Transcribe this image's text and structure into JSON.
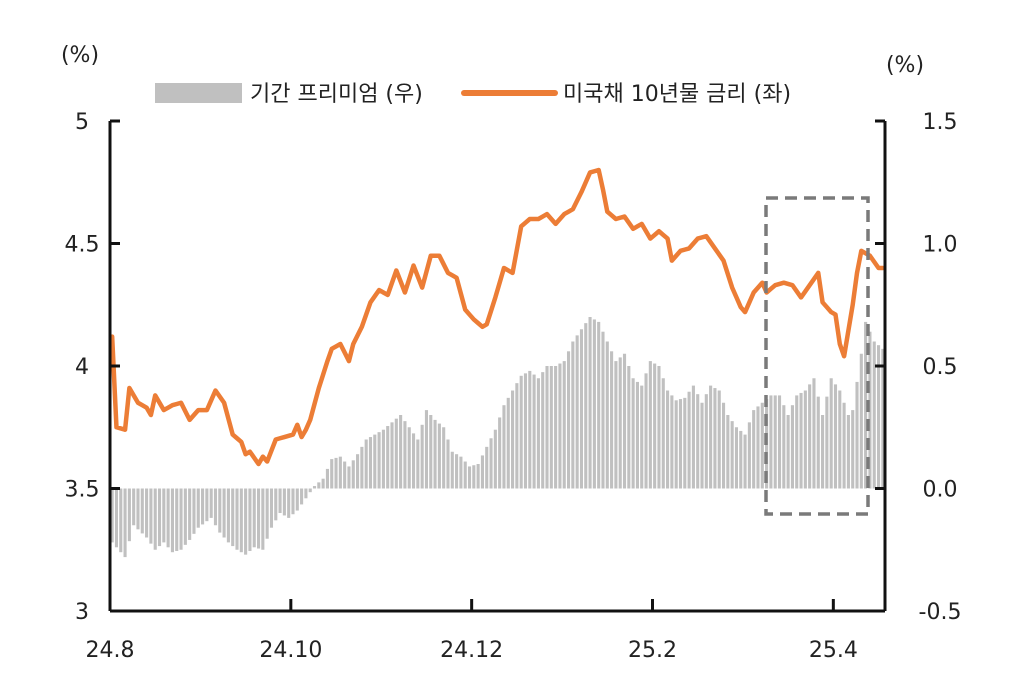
{
  "chart_data": {
    "type": "bar+line",
    "left_axis": {
      "unit": "(%)",
      "ylim": [
        3,
        5
      ],
      "ticks": [
        3,
        3.5,
        4,
        4.5,
        5
      ],
      "tick_labels": [
        "3",
        "3.5",
        "4",
        "4.5",
        "5"
      ]
    },
    "right_axis": {
      "unit": "(%)",
      "ylim": [
        -0.5,
        1.5
      ],
      "ticks": [
        -0.5,
        0.0,
        0.5,
        1.0,
        1.5
      ],
      "tick_labels": [
        "-0.5",
        "0.0",
        "0.5",
        "1.0",
        "1.5"
      ]
    },
    "x_axis": {
      "tick_labels": [
        "24.8",
        "24.10",
        "24.12",
        "25.2",
        "25.4"
      ],
      "tick_index": [
        0,
        42,
        84,
        126,
        168
      ],
      "n_points": 180
    },
    "legend": [
      {
        "label": "기간 프리미엄 (우)",
        "kind": "bar",
        "color": "#c0c0c0"
      },
      {
        "label": "미국채 10년물 금리 (좌)",
        "kind": "line",
        "color": "#ec7d36"
      }
    ],
    "series": [
      {
        "name": "기간 프리미엄 (우)",
        "axis": "right",
        "type": "bar",
        "anchors": [
          [
            0,
            -0.22
          ],
          [
            3,
            -0.28
          ],
          [
            5,
            -0.15
          ],
          [
            8,
            -0.2
          ],
          [
            10,
            -0.25
          ],
          [
            12,
            -0.22
          ],
          [
            14,
            -0.26
          ],
          [
            16,
            -0.25
          ],
          [
            18,
            -0.21
          ],
          [
            20,
            -0.16
          ],
          [
            23,
            -0.12
          ],
          [
            25,
            -0.18
          ],
          [
            27,
            -0.22
          ],
          [
            29,
            -0.25
          ],
          [
            31,
            -0.27
          ],
          [
            33,
            -0.24
          ],
          [
            35,
            -0.25
          ],
          [
            37,
            -0.16
          ],
          [
            39,
            -0.1
          ],
          [
            41,
            -0.12
          ],
          [
            43,
            -0.09
          ],
          [
            45,
            -0.04
          ],
          [
            47,
            0.01
          ],
          [
            49,
            0.04
          ],
          [
            51,
            0.12
          ],
          [
            53,
            0.13
          ],
          [
            55,
            0.09
          ],
          [
            57,
            0.14
          ],
          [
            59,
            0.2
          ],
          [
            61,
            0.22
          ],
          [
            63,
            0.24
          ],
          [
            65,
            0.27
          ],
          [
            67,
            0.3
          ],
          [
            69,
            0.25
          ],
          [
            71,
            0.2
          ],
          [
            73,
            0.32
          ],
          [
            75,
            0.28
          ],
          [
            77,
            0.25
          ],
          [
            79,
            0.15
          ],
          [
            81,
            0.13
          ],
          [
            83,
            0.09
          ],
          [
            85,
            0.1
          ],
          [
            87,
            0.17
          ],
          [
            89,
            0.24
          ],
          [
            91,
            0.34
          ],
          [
            93,
            0.4
          ],
          [
            95,
            0.46
          ],
          [
            97,
            0.48
          ],
          [
            99,
            0.45
          ],
          [
            101,
            0.5
          ],
          [
            103,
            0.5
          ],
          [
            105,
            0.52
          ],
          [
            107,
            0.6
          ],
          [
            109,
            0.65
          ],
          [
            111,
            0.7
          ],
          [
            113,
            0.68
          ],
          [
            115,
            0.6
          ],
          [
            117,
            0.52
          ],
          [
            119,
            0.55
          ],
          [
            121,
            0.45
          ],
          [
            123,
            0.42
          ],
          [
            125,
            0.52
          ],
          [
            127,
            0.5
          ],
          [
            129,
            0.4
          ],
          [
            131,
            0.36
          ],
          [
            133,
            0.37
          ],
          [
            135,
            0.42
          ],
          [
            137,
            0.35
          ],
          [
            139,
            0.42
          ],
          [
            141,
            0.4
          ],
          [
            143,
            0.3
          ],
          [
            145,
            0.25
          ],
          [
            147,
            0.22
          ],
          [
            149,
            0.32
          ],
          [
            151,
            0.35
          ],
          [
            153,
            0.38
          ],
          [
            155,
            0.38
          ],
          [
            157,
            0.3
          ],
          [
            159,
            0.38
          ],
          [
            161,
            0.4
          ],
          [
            163,
            0.45
          ],
          [
            165,
            0.3
          ],
          [
            167,
            0.45
          ],
          [
            169,
            0.4
          ],
          [
            171,
            0.3
          ],
          [
            172,
            0.32
          ],
          [
            174,
            0.55
          ],
          [
            175,
            0.68
          ],
          [
            177,
            0.6
          ],
          [
            179,
            0.57
          ]
        ]
      },
      {
        "name": "미국채 10년물 금리 (좌)",
        "axis": "left",
        "type": "line",
        "anchors": [
          [
            0,
            4.12
          ],
          [
            1,
            3.75
          ],
          [
            3,
            3.74
          ],
          [
            4,
            3.91
          ],
          [
            6,
            3.85
          ],
          [
            8,
            3.83
          ],
          [
            9,
            3.8
          ],
          [
            10,
            3.88
          ],
          [
            12,
            3.82
          ],
          [
            14,
            3.84
          ],
          [
            16,
            3.85
          ],
          [
            18,
            3.78
          ],
          [
            20,
            3.82
          ],
          [
            22,
            3.82
          ],
          [
            24,
            3.9
          ],
          [
            26,
            3.85
          ],
          [
            28,
            3.72
          ],
          [
            30,
            3.69
          ],
          [
            31,
            3.64
          ],
          [
            32,
            3.65
          ],
          [
            34,
            3.6
          ],
          [
            35,
            3.63
          ],
          [
            36,
            3.61
          ],
          [
            38,
            3.7
          ],
          [
            40,
            3.71
          ],
          [
            42,
            3.72
          ],
          [
            43,
            3.76
          ],
          [
            44,
            3.71
          ],
          [
            45,
            3.74
          ],
          [
            46,
            3.78
          ],
          [
            48,
            3.91
          ],
          [
            50,
            4.02
          ],
          [
            51,
            4.07
          ],
          [
            53,
            4.09
          ],
          [
            55,
            4.02
          ],
          [
            56,
            4.09
          ],
          [
            58,
            4.16
          ],
          [
            60,
            4.26
          ],
          [
            62,
            4.31
          ],
          [
            64,
            4.29
          ],
          [
            66,
            4.39
          ],
          [
            68,
            4.3
          ],
          [
            70,
            4.41
          ],
          [
            72,
            4.32
          ],
          [
            74,
            4.45
          ],
          [
            76,
            4.45
          ],
          [
            78,
            4.38
          ],
          [
            80,
            4.36
          ],
          [
            82,
            4.23
          ],
          [
            84,
            4.19
          ],
          [
            86,
            4.16
          ],
          [
            87,
            4.17
          ],
          [
            89,
            4.28
          ],
          [
            91,
            4.4
          ],
          [
            93,
            4.38
          ],
          [
            95,
            4.57
          ],
          [
            97,
            4.6
          ],
          [
            99,
            4.6
          ],
          [
            101,
            4.62
          ],
          [
            103,
            4.58
          ],
          [
            105,
            4.62
          ],
          [
            107,
            4.64
          ],
          [
            109,
            4.71
          ],
          [
            111,
            4.79
          ],
          [
            113,
            4.8
          ],
          [
            114,
            4.72
          ],
          [
            115,
            4.63
          ],
          [
            117,
            4.6
          ],
          [
            119,
            4.61
          ],
          [
            121,
            4.56
          ],
          [
            123,
            4.58
          ],
          [
            125,
            4.52
          ],
          [
            127,
            4.55
          ],
          [
            129,
            4.52
          ],
          [
            130,
            4.43
          ],
          [
            132,
            4.47
          ],
          [
            134,
            4.48
          ],
          [
            136,
            4.52
          ],
          [
            138,
            4.53
          ],
          [
            140,
            4.48
          ],
          [
            142,
            4.43
          ],
          [
            144,
            4.32
          ],
          [
            146,
            4.24
          ],
          [
            147,
            4.22
          ],
          [
            149,
            4.3
          ],
          [
            151,
            4.34
          ],
          [
            152,
            4.3
          ],
          [
            154,
            4.33
          ],
          [
            156,
            4.34
          ],
          [
            158,
            4.33
          ],
          [
            160,
            4.28
          ],
          [
            162,
            4.33
          ],
          [
            164,
            4.38
          ],
          [
            165,
            4.26
          ],
          [
            167,
            4.22
          ],
          [
            168,
            4.21
          ],
          [
            169,
            4.09
          ],
          [
            170,
            4.04
          ],
          [
            172,
            4.25
          ],
          [
            173,
            4.38
          ],
          [
            174,
            4.47
          ],
          [
            176,
            4.45
          ],
          [
            178,
            4.4
          ]
        ]
      }
    ],
    "annotations": [
      {
        "type": "dashed-box",
        "covers": "25.4 구간 (최근 변동)"
      }
    ]
  }
}
